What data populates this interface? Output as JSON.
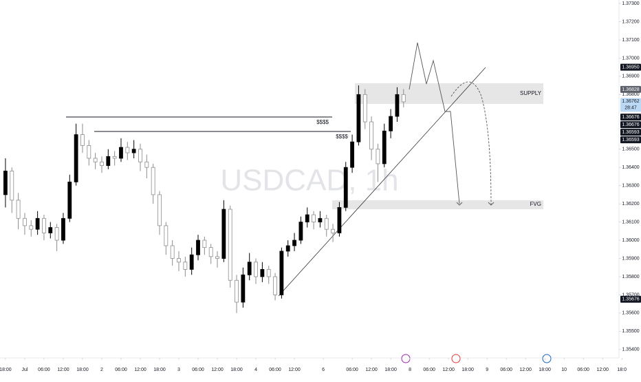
{
  "chart_data": {
    "type": "candlestick",
    "watermark": "USDCAD, 1h",
    "x": [
      -6,
      -4,
      -2,
      0,
      2,
      4,
      6,
      8,
      10,
      12,
      14,
      16,
      18,
      20,
      22,
      24,
      26,
      28,
      30,
      32,
      34,
      36,
      38,
      40,
      42,
      44,
      46,
      48,
      50,
      52,
      54,
      56,
      58,
      60,
      62,
      64,
      66,
      68,
      70,
      72,
      74,
      76,
      78,
      80,
      82,
      84,
      86,
      88,
      90,
      92,
      94,
      96,
      98,
      100,
      102,
      104,
      106,
      108,
      110,
      112,
      114,
      116,
      118
    ],
    "open": [
      1.3625,
      1.3638,
      1.3622,
      1.3612,
      1.3608,
      1.3606,
      1.3612,
      1.3604,
      1.3607,
      1.36,
      1.3612,
      1.3632,
      1.3658,
      1.3652,
      1.3645,
      1.3643,
      1.3641,
      1.3646,
      1.3645,
      1.3651,
      1.3648,
      1.365,
      1.3643,
      1.364,
      1.3625,
      1.3608,
      1.3597,
      1.359,
      1.3588,
      1.3584,
      1.3592,
      1.36,
      1.3596,
      1.3591,
      1.359,
      1.3617,
      1.3578,
      1.3566,
      1.3581,
      1.3588,
      1.358,
      1.3584,
      1.358,
      1.357,
      1.3594,
      1.3597,
      1.36,
      1.361,
      1.3614,
      1.361,
      1.3612,
      1.3606,
      1.3604,
      1.3618,
      1.364,
      1.3654,
      1.368,
      1.3665,
      1.365,
      1.3642,
      1.366,
      1.3668,
      1.368
    ],
    "high": [
      1.3645,
      1.364,
      1.3626,
      1.3615,
      1.3611,
      1.3616,
      1.3614,
      1.361,
      1.3609,
      1.3615,
      1.3636,
      1.3664,
      1.3664,
      1.3655,
      1.3648,
      1.3646,
      1.365,
      1.3649,
      1.3656,
      1.3654,
      1.3655,
      1.3653,
      1.3647,
      1.3642,
      1.3627,
      1.361,
      1.36,
      1.3594,
      1.3591,
      1.3596,
      1.3603,
      1.3602,
      1.3598,
      1.3594,
      1.3622,
      1.3619,
      1.3581,
      1.3585,
      1.3593,
      1.359,
      1.3588,
      1.3586,
      1.3582,
      1.3596,
      1.36,
      1.3604,
      1.3613,
      1.3618,
      1.3616,
      1.3616,
      1.3614,
      1.3609,
      1.3621,
      1.3643,
      1.3658,
      1.3685,
      1.3683,
      1.3668,
      1.3653,
      1.3664,
      1.3672,
      1.3684,
      1.3683
    ],
    "low": [
      1.3618,
      1.3615,
      1.3606,
      1.3603,
      1.3602,
      1.3603,
      1.36,
      1.3601,
      1.3594,
      1.3598,
      1.361,
      1.363,
      1.3648,
      1.3641,
      1.3639,
      1.3637,
      1.3639,
      1.3641,
      1.3643,
      1.3644,
      1.3645,
      1.3638,
      1.3634,
      1.362,
      1.3603,
      1.3592,
      1.3586,
      1.3583,
      1.358,
      1.3581,
      1.3589,
      1.3592,
      1.3587,
      1.3585,
      1.3588,
      1.3574,
      1.356,
      1.3563,
      1.3578,
      1.3576,
      1.3577,
      1.3576,
      1.3567,
      1.3568,
      1.3591,
      1.3594,
      1.3598,
      1.3607,
      1.3606,
      1.3607,
      1.3602,
      1.3599,
      1.3602,
      1.3616,
      1.3637,
      1.3652,
      1.3661,
      1.3644,
      1.3632,
      1.364,
      1.3656,
      1.3665,
      1.3673
    ],
    "close": [
      1.3638,
      1.3622,
      1.3612,
      1.3608,
      1.3606,
      1.3612,
      1.3604,
      1.3607,
      1.36,
      1.3612,
      1.3632,
      1.3658,
      1.3652,
      1.3645,
      1.3643,
      1.3641,
      1.3646,
      1.3645,
      1.3651,
      1.3648,
      1.365,
      1.3643,
      1.364,
      1.3625,
      1.3608,
      1.3597,
      1.359,
      1.3588,
      1.3584,
      1.3592,
      1.36,
      1.3596,
      1.3591,
      1.359,
      1.3617,
      1.3578,
      1.3566,
      1.3581,
      1.3588,
      1.358,
      1.3584,
      1.358,
      1.357,
      1.3594,
      1.3597,
      1.36,
      1.361,
      1.3614,
      1.361,
      1.3612,
      1.3606,
      1.3604,
      1.3618,
      1.364,
      1.3654,
      1.368,
      1.3665,
      1.365,
      1.3642,
      1.366,
      1.3668,
      1.368,
      1.3676
    ],
    "up_color": "#000000",
    "down_color": "#ffffff",
    "down_border": "#8c8c8c",
    "xlim": [
      -7.7,
      185.1
    ],
    "ylim": [
      1.35354,
      1.37319
    ],
    "xticks": [
      {
        "value": -6,
        "label": "18:00"
      },
      {
        "value": 0,
        "label": "Jul"
      },
      {
        "value": 6,
        "label": "06:00"
      },
      {
        "value": 12,
        "label": "12:00"
      },
      {
        "value": 18,
        "label": "18:00"
      },
      {
        "value": 24,
        "label": "2"
      },
      {
        "value": 30,
        "label": "06:00"
      },
      {
        "value": 36,
        "label": "12:00"
      },
      {
        "value": 42,
        "label": "18:00"
      },
      {
        "value": 48,
        "label": "3"
      },
      {
        "value": 54,
        "label": "06:00"
      },
      {
        "value": 60,
        "label": "12:00"
      },
      {
        "value": 66,
        "label": "18:00"
      },
      {
        "value": 72,
        "label": "4"
      },
      {
        "value": 78,
        "label": "06:00"
      },
      {
        "value": 84,
        "label": "12:00"
      },
      {
        "value": 93,
        "label": "6"
      },
      {
        "value": 102,
        "label": "06:00"
      },
      {
        "value": 108,
        "label": "12:00"
      },
      {
        "value": 114,
        "label": "18:00"
      },
      {
        "value": 120,
        "label": "8"
      },
      {
        "value": 126,
        "label": "06:00"
      },
      {
        "value": 132,
        "label": "12:00"
      },
      {
        "value": 138,
        "label": "18:00"
      },
      {
        "value": 144,
        "label": "9"
      },
      {
        "value": 150,
        "label": "06:00"
      },
      {
        "value": 156,
        "label": "12:00"
      },
      {
        "value": 162,
        "label": "18:00"
      },
      {
        "value": 168,
        "label": "10"
      },
      {
        "value": 174,
        "label": "06:00"
      },
      {
        "value": 180,
        "label": "12:00"
      },
      {
        "value": 186,
        "label": "18:0"
      }
    ],
    "yticks": [
      {
        "value": 1.373,
        "label": "1.37300"
      },
      {
        "value": 1.372,
        "label": "1.37200"
      },
      {
        "value": 1.371,
        "label": "1.37100"
      },
      {
        "value": 1.37,
        "label": "1.37000"
      },
      {
        "value": 1.369,
        "label": "1.36900"
      },
      {
        "value": 1.368,
        "label": "1.36800"
      },
      {
        "value": 1.365,
        "label": "1.36500"
      },
      {
        "value": 1.364,
        "label": "1.36400"
      },
      {
        "value": 1.363,
        "label": "1.36300"
      },
      {
        "value": 1.362,
        "label": "1.36200"
      },
      {
        "value": 1.361,
        "label": "1.36100"
      },
      {
        "value": 1.36,
        "label": "1.36000"
      },
      {
        "value": 1.359,
        "label": "1.35900"
      },
      {
        "value": 1.358,
        "label": "1.35800"
      },
      {
        "value": 1.357,
        "label": "1.35700"
      },
      {
        "value": 1.356,
        "label": "1.35600"
      },
      {
        "value": 1.355,
        "label": "1.35500"
      },
      {
        "value": 1.354,
        "label": "1.35400"
      }
    ],
    "price_labels": [
      {
        "value": 1.3695,
        "label": "1.36950",
        "color": "#131722"
      },
      {
        "value": 1.36828,
        "label": "1.36828",
        "color": "#5d606b"
      },
      {
        "value": 1.36762,
        "label": "1.36762",
        "color": "#bbd9f5"
      },
      {
        "value": 1.36676,
        "label": "1.36676",
        "color": "#131722"
      },
      {
        "value": 1.36676,
        "label": "1.36676",
        "color": "#131722"
      },
      {
        "value": 1.36593,
        "label": "1.36593",
        "color": "#131722"
      },
      {
        "value": 1.36593,
        "label": "1.36593",
        "color": "#131722"
      },
      {
        "value": 1.35676,
        "label": "1.35676",
        "color": "#131722"
      }
    ],
    "countdown": "28:47",
    "annotations": [
      "$$$$",
      "$$$$",
      "SUPPLY",
      "FVG"
    ]
  }
}
